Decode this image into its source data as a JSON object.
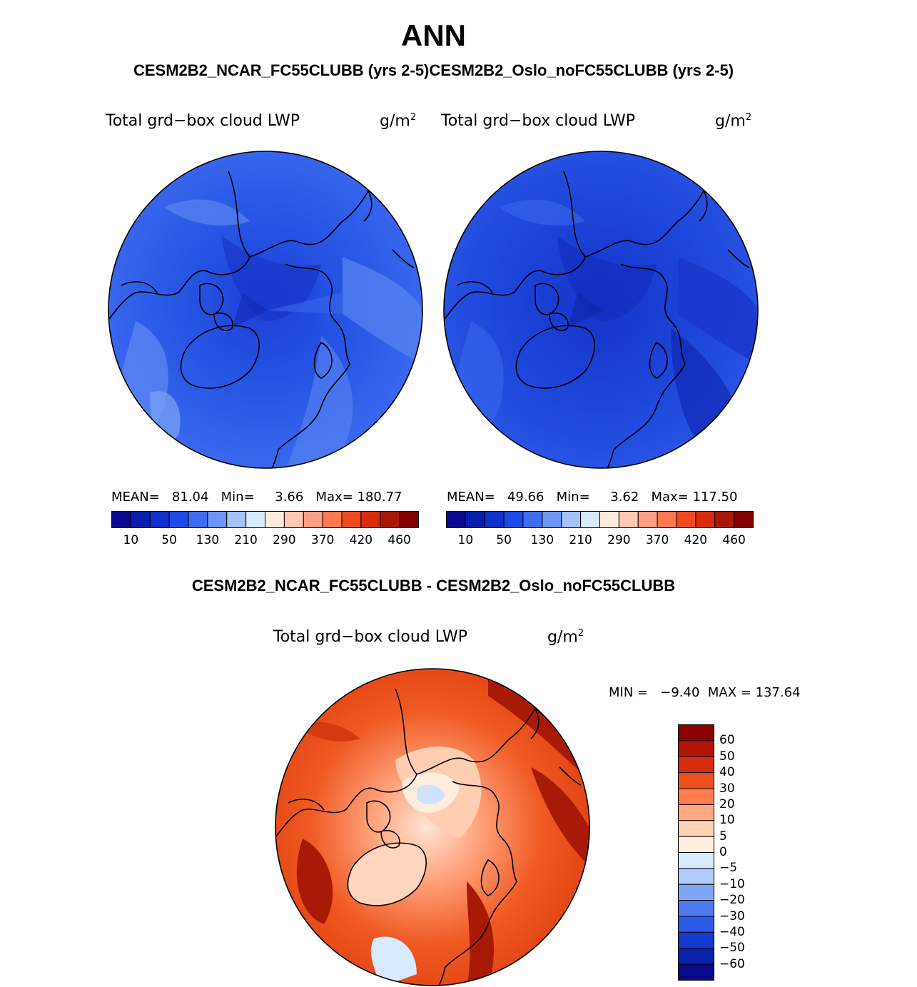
{
  "figure": {
    "title": "ANN",
    "subtitle": "CESM2B2_NCAR_FC55CLUBB (yrs 2-5)CESM2B2_Oslo_noFC55CLUBB (yrs 2-5)",
    "diff_title": "CESM2B2_NCAR_FC55CLUBB - CESM2B2_Oslo_noFC55CLUBB"
  },
  "panels": [
    {
      "variable": "Total grd−box cloud LWP",
      "units_base": "g/m",
      "units_exp": "2",
      "stats": "MEAN=   81.04   Min=     3.66   Max= 180.77",
      "mean": 81.04,
      "min": 3.66,
      "max": 180.77
    },
    {
      "variable": "Total grd−box cloud LWP",
      "units_base": "g/m",
      "units_exp": "2",
      "stats": "MEAN=   49.66   Min=     3.62   Max= 117.50",
      "mean": 49.66,
      "min": 3.62,
      "max": 117.5
    }
  ],
  "abs_colorbar": {
    "colors": [
      "#0a0a8c",
      "#0a1ead",
      "#0f32cd",
      "#1e4be6",
      "#3c6ef0",
      "#6e96f5",
      "#a5c3fa",
      "#d7ebff",
      "#ffeadc",
      "#ffc8b4",
      "#ffa082",
      "#ff7850",
      "#f04b1e",
      "#d72d0a",
      "#aa1905",
      "#820000"
    ],
    "ticks": [
      "10",
      "50",
      "130",
      "210",
      "290",
      "370",
      "420",
      "460"
    ]
  },
  "diff_panel": {
    "variable": "Total grd−box cloud LWP",
    "units_base": "g/m",
    "units_exp": "2",
    "minmax": "MIN =   −9.40  MAX = 137.64",
    "min": -9.4,
    "max": 137.64
  },
  "diff_colorbar": {
    "colors": [
      "#8c0000",
      "#b41405",
      "#d72d0a",
      "#f0501e",
      "#ff7e4c",
      "#ffa882",
      "#ffd2b4",
      "#ffeee0",
      "#d7ebff",
      "#b0ccfa",
      "#7ea6f5",
      "#4f7aee",
      "#2a5ae6",
      "#143ccf",
      "#0a23ad",
      "#0a0a8c"
    ],
    "labels": [
      "60",
      "50",
      "40",
      "30",
      "20",
      "10",
      "5",
      "0",
      "−5",
      "−10",
      "−20",
      "−30",
      "−40",
      "−50",
      "−60"
    ]
  }
}
